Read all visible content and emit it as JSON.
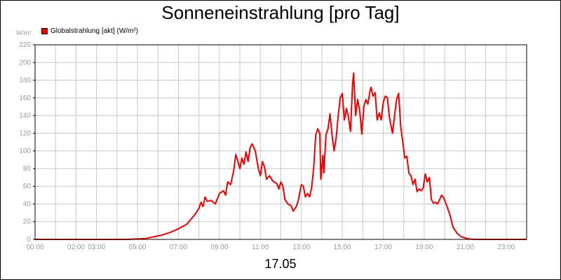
{
  "chart_data": {
    "type": "line",
    "title": "Sonneneinstrahlung [pro Tag]",
    "xlabel": "17.05",
    "ylabel": "W/m²",
    "ylim": [
      0,
      220
    ],
    "xlim": [
      0,
      24
    ],
    "grid": true,
    "legend_position": "top-left",
    "y_ticks": [
      "0",
      "20",
      "40",
      "60",
      "80",
      "100",
      "120",
      "140",
      "160",
      "180",
      "200",
      "220"
    ],
    "x_ticks": [
      {
        "x": 0,
        "label": "00:00"
      },
      {
        "x": 2,
        "label": "02:00"
      },
      {
        "x": 3,
        "label": "03:00"
      },
      {
        "x": 5,
        "label": "05:00"
      },
      {
        "x": 7,
        "label": "07:00"
      },
      {
        "x": 9,
        "label": "09:00"
      },
      {
        "x": 11,
        "label": "11:00"
      },
      {
        "x": 13,
        "label": "13:00"
      },
      {
        "x": 15,
        "label": "15:00"
      },
      {
        "x": 17,
        "label": "17:00"
      },
      {
        "x": 19,
        "label": "19:00"
      },
      {
        "x": 21,
        "label": "21:00"
      },
      {
        "x": 23,
        "label": "23:00"
      }
    ],
    "series": [
      {
        "name": "Globalstrahlung [akt] (W/m²)",
        "color": "#ee0000",
        "points": [
          [
            0.0,
            0
          ],
          [
            4.5,
            0
          ],
          [
            5.4,
            1
          ],
          [
            5.8,
            3
          ],
          [
            6.2,
            5
          ],
          [
            6.6,
            8
          ],
          [
            7.0,
            12
          ],
          [
            7.4,
            17
          ],
          [
            7.8,
            28
          ],
          [
            8.0,
            35
          ],
          [
            8.1,
            42
          ],
          [
            8.2,
            37
          ],
          [
            8.3,
            48
          ],
          [
            8.4,
            43
          ],
          [
            8.6,
            44
          ],
          [
            8.8,
            40
          ],
          [
            9.0,
            52
          ],
          [
            9.2,
            55
          ],
          [
            9.3,
            50
          ],
          [
            9.4,
            65
          ],
          [
            9.55,
            62
          ],
          [
            9.7,
            78
          ],
          [
            9.8,
            96
          ],
          [
            9.9,
            88
          ],
          [
            10.0,
            80
          ],
          [
            10.1,
            92
          ],
          [
            10.2,
            85
          ],
          [
            10.3,
            99
          ],
          [
            10.4,
            88
          ],
          [
            10.5,
            104
          ],
          [
            10.6,
            108
          ],
          [
            10.75,
            100
          ],
          [
            10.9,
            80
          ],
          [
            11.0,
            72
          ],
          [
            11.1,
            88
          ],
          [
            11.2,
            82
          ],
          [
            11.3,
            68
          ],
          [
            11.45,
            72
          ],
          [
            11.6,
            66
          ],
          [
            11.8,
            63
          ],
          [
            11.9,
            57
          ],
          [
            12.0,
            65
          ],
          [
            12.1,
            60
          ],
          [
            12.2,
            45
          ],
          [
            12.35,
            40
          ],
          [
            12.5,
            38
          ],
          [
            12.6,
            32
          ],
          [
            12.75,
            37
          ],
          [
            12.85,
            44
          ],
          [
            13.0,
            62
          ],
          [
            13.1,
            60
          ],
          [
            13.2,
            48
          ],
          [
            13.3,
            52
          ],
          [
            13.4,
            48
          ],
          [
            13.5,
            58
          ],
          [
            13.6,
            80
          ],
          [
            13.7,
            118
          ],
          [
            13.8,
            125
          ],
          [
            13.9,
            120
          ],
          [
            13.95,
            68
          ],
          [
            14.05,
            95
          ],
          [
            14.1,
            75
          ],
          [
            14.2,
            118
          ],
          [
            14.3,
            125
          ],
          [
            14.4,
            142
          ],
          [
            14.5,
            118
          ],
          [
            14.6,
            100
          ],
          [
            14.7,
            115
          ],
          [
            14.8,
            140
          ],
          [
            14.9,
            160
          ],
          [
            15.0,
            165
          ],
          [
            15.1,
            135
          ],
          [
            15.2,
            148
          ],
          [
            15.3,
            138
          ],
          [
            15.4,
            122
          ],
          [
            15.5,
            175
          ],
          [
            15.55,
            188
          ],
          [
            15.65,
            140
          ],
          [
            15.75,
            158
          ],
          [
            15.85,
            145
          ],
          [
            15.95,
            119
          ],
          [
            16.05,
            150
          ],
          [
            16.15,
            158
          ],
          [
            16.25,
            153
          ],
          [
            16.35,
            168
          ],
          [
            16.4,
            172
          ],
          [
            16.5,
            162
          ],
          [
            16.6,
            166
          ],
          [
            16.7,
            135
          ],
          [
            16.8,
            143
          ],
          [
            16.9,
            135
          ],
          [
            17.0,
            155
          ],
          [
            17.1,
            162
          ],
          [
            17.2,
            160
          ],
          [
            17.3,
            138
          ],
          [
            17.45,
            120
          ],
          [
            17.55,
            140
          ],
          [
            17.65,
            158
          ],
          [
            17.75,
            165
          ],
          [
            17.85,
            128
          ],
          [
            17.95,
            110
          ],
          [
            18.05,
            92
          ],
          [
            18.15,
            94
          ],
          [
            18.25,
            75
          ],
          [
            18.35,
            72
          ],
          [
            18.45,
            62
          ],
          [
            18.55,
            68
          ],
          [
            18.65,
            54
          ],
          [
            18.75,
            57
          ],
          [
            18.85,
            55
          ],
          [
            18.95,
            58
          ],
          [
            19.05,
            74
          ],
          [
            19.15,
            65
          ],
          [
            19.25,
            70
          ],
          [
            19.35,
            45
          ],
          [
            19.45,
            41
          ],
          [
            19.55,
            42
          ],
          [
            19.65,
            40
          ],
          [
            19.75,
            45
          ],
          [
            19.85,
            50
          ],
          [
            19.95,
            47
          ],
          [
            20.1,
            38
          ],
          [
            20.25,
            28
          ],
          [
            20.4,
            14
          ],
          [
            20.6,
            7
          ],
          [
            20.8,
            3
          ],
          [
            21.0,
            1.5
          ],
          [
            21.2,
            0.5
          ],
          [
            21.5,
            0
          ],
          [
            24.0,
            0
          ]
        ]
      }
    ]
  }
}
